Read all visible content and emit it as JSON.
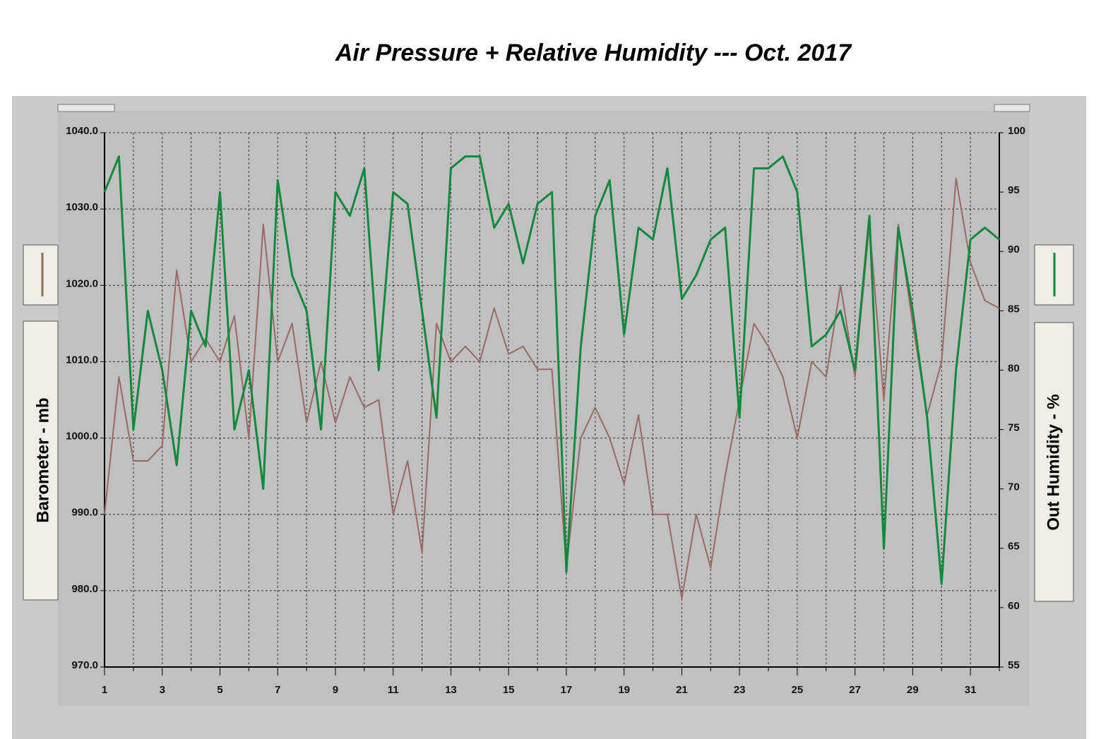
{
  "chart_data": {
    "type": "line",
    "title": "Air Pressure + Relative Humidity --- Oct. 2017",
    "x": [
      1,
      1.5,
      2,
      2.5,
      3,
      3.5,
      4,
      4.5,
      5,
      5.5,
      6,
      6.5,
      7,
      7.5,
      8,
      8.5,
      9,
      9.5,
      10,
      10.5,
      11,
      11.5,
      12,
      12.5,
      13,
      13.5,
      14,
      14.5,
      15,
      15.5,
      16,
      16.5,
      17,
      17.5,
      18,
      18.5,
      19,
      19.5,
      20,
      20.5,
      21,
      21.5,
      22,
      22.5,
      23,
      23.5,
      24,
      24.5,
      25,
      25.5,
      26,
      26.5,
      27,
      27.5,
      28,
      28.5,
      29,
      29.5,
      30,
      30.5,
      31,
      31.5,
      32
    ],
    "series": [
      {
        "name": "Barometer - mb",
        "color": "#9a6a62",
        "values": [
          990,
          1008,
          997,
          997,
          999,
          1022,
          1010,
          1013,
          1010,
          1016,
          1000,
          1028,
          1010,
          1015,
          1002,
          1010,
          1002,
          1008,
          1004,
          1005,
          990,
          997,
          985,
          1015,
          1010,
          1012,
          1010,
          1017,
          1011,
          1012,
          1009,
          1009,
          983,
          1000,
          1004,
          1000,
          994,
          1003,
          990,
          990,
          979,
          990,
          983,
          995,
          1005,
          1015,
          1012,
          1008,
          1000,
          1010,
          1008,
          1020,
          1008,
          1028,
          1005,
          1028,
          1015,
          1003,
          1010,
          1034,
          1023,
          1018,
          1017
        ]
      },
      {
        "name": "Out Humidity - %",
        "color": "#0f8a3c",
        "axis": "y2",
        "values": [
          95,
          98,
          75,
          85,
          80,
          72,
          85,
          82,
          95,
          75,
          80,
          70,
          96,
          88,
          85,
          75,
          95,
          93,
          97,
          80,
          95,
          94,
          85,
          76,
          97,
          98,
          98,
          92,
          94,
          89,
          94,
          95,
          63,
          82,
          93,
          96,
          83,
          92,
          91,
          97,
          86,
          88,
          91,
          92,
          76,
          97,
          97,
          98,
          95,
          82,
          83,
          85,
          80,
          93,
          65,
          92,
          85,
          76,
          62,
          80,
          91,
          92,
          91
        ]
      }
    ],
    "xlim": [
      1,
      32
    ],
    "xticks": [
      1,
      3,
      5,
      7,
      9,
      11,
      13,
      15,
      17,
      19,
      21,
      23,
      25,
      27,
      29,
      31
    ],
    "xminor_ticks": [
      2,
      4,
      6,
      8,
      10,
      12,
      14,
      16,
      18,
      20,
      22,
      24,
      26,
      28,
      30,
      32
    ],
    "ylim": [
      970,
      1040
    ],
    "yticks": [
      {
        "value": 970,
        "label": "970.0"
      },
      {
        "value": 980,
        "label": "980.0"
      },
      {
        "value": 990,
        "label": "990.0"
      },
      {
        "value": 1000,
        "label": "1000.0"
      },
      {
        "value": 1010,
        "label": "1010.0"
      },
      {
        "value": 1020,
        "label": "1020.0"
      },
      {
        "value": 1030,
        "label": "1030.0"
      },
      {
        "value": 1040,
        "label": "1040.0"
      }
    ],
    "y2lim": [
      55,
      100
    ],
    "y2ticks": [
      55,
      60,
      65,
      70,
      75,
      80,
      85,
      90,
      95,
      100
    ],
    "grid": true
  }
}
